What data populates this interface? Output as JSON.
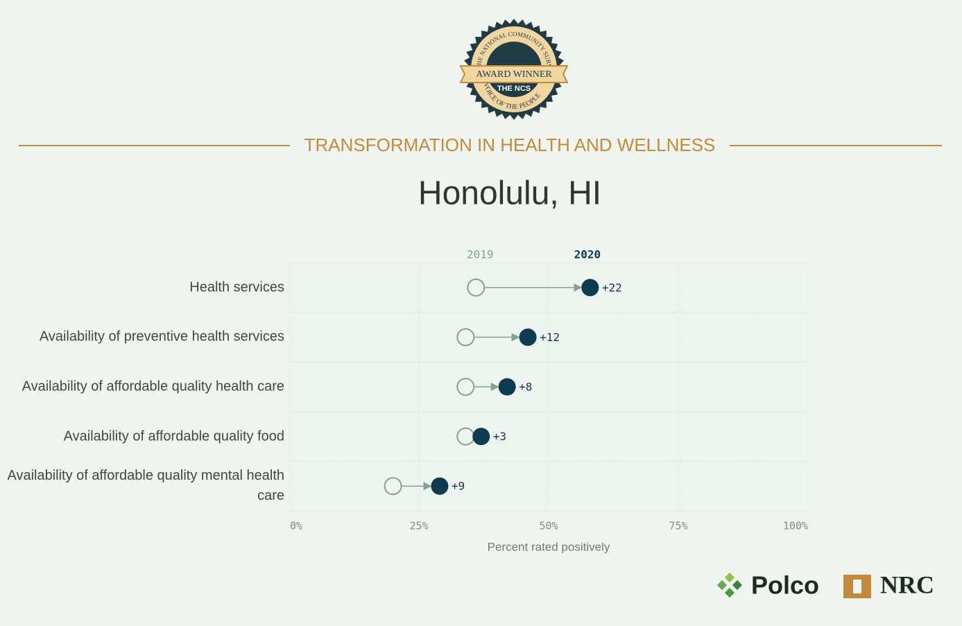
{
  "header": "TRANSFORMATION IN HEALTH AND WELLNESS",
  "badge": {
    "ring_top": "THE NATIONAL COMMUNITY SURVEY",
    "ribbon": "AWARD WINNER",
    "center": "THE NCS",
    "ring_bottom": "VOICE OF THE PEOPLE"
  },
  "logos": {
    "left": "Polco",
    "right": "NRC"
  },
  "chart_data": {
    "type": "dumbbell",
    "title": "Honolulu, HI",
    "categories": [
      "Health services",
      "Availability of preventive health services",
      "Availability of affordable quality health care",
      "Availability of affordable quality food",
      "Availability of affordable quality mental health care"
    ],
    "series": [
      {
        "name": "2019",
        "color": "#86a091",
        "values": [
          36,
          34,
          34,
          34,
          20
        ]
      },
      {
        "name": "2020",
        "color": "#0d3b4f",
        "values": [
          58,
          46,
          42,
          37,
          29
        ]
      }
    ],
    "change_labels": [
      "+22",
      "+12",
      "+8",
      "+3",
      "+9"
    ],
    "xlim": [
      0,
      100
    ],
    "xticks": [
      {
        "value": 0,
        "label": "0%"
      },
      {
        "value": 25,
        "label": "25%"
      },
      {
        "value": 50,
        "label": "50%"
      },
      {
        "value": 75,
        "label": "75%"
      },
      {
        "value": 100,
        "label": "100%"
      }
    ],
    "xlabel": "Percent rated positively",
    "grid": true
  }
}
